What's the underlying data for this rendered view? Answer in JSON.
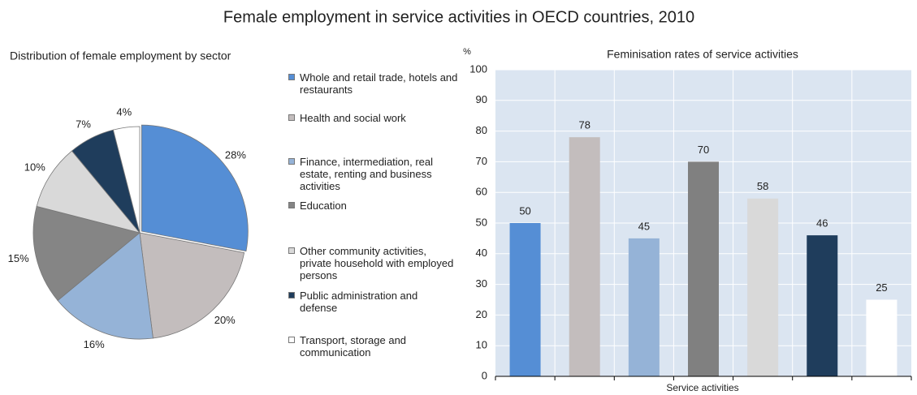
{
  "title": "Female employment in service activities in OECD countries, 2010",
  "chart_data": [
    {
      "type": "pie",
      "title": "Distribution of female employment by sector",
      "categories": [
        "Whole and retail trade, hotels and restaurants",
        "Health and social work",
        "Finance, intermediation, real estate, renting and business activities",
        "Education",
        "Other community activities, private household with employed persons",
        "Public administration and defense",
        "Transport, storage and communication"
      ],
      "values": [
        28,
        20,
        16,
        15,
        10,
        7,
        4
      ],
      "value_labels": [
        "28%",
        "20%",
        "16%",
        "15%",
        "10%",
        "7%",
        "4%"
      ],
      "colors": [
        "#558ed5",
        "#c3bdbd",
        "#95b3d7",
        "#858585",
        "#d9d9d9",
        "#1f3d5c",
        "#ffffff"
      ]
    },
    {
      "type": "bar",
      "title": "Feminisation rates of service activities",
      "ylabel": "%",
      "xlabel": "Service activities",
      "categories": [
        null,
        null,
        null,
        null,
        null,
        null,
        null
      ],
      "values": [
        50,
        78,
        45,
        70,
        58,
        46,
        25
      ],
      "colors": [
        "#558ed5",
        "#c3bdbd",
        "#95b3d7",
        "#808080",
        "#d9d9d9",
        "#1f3d5c",
        "#ffffff"
      ],
      "ylim": [
        0,
        100
      ],
      "yticks": [
        0,
        10,
        20,
        30,
        40,
        50,
        60,
        70,
        80,
        90,
        100
      ],
      "grid": true
    }
  ]
}
